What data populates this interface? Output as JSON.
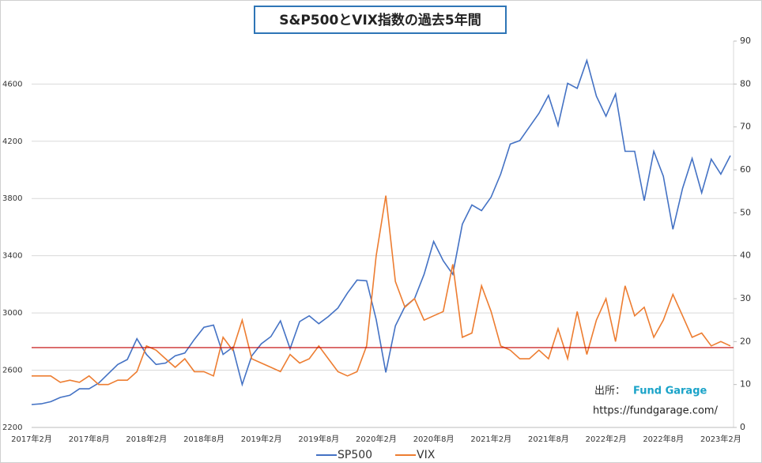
{
  "chart_data": {
    "type": "line",
    "title": "S&P500とVIX指数の過去5年間",
    "categories": [
      "2017年2月",
      null,
      null,
      null,
      null,
      null,
      "2017年8月",
      null,
      null,
      null,
      null,
      null,
      "2018年2月",
      null,
      null,
      null,
      null,
      null,
      "2018年8月",
      null,
      null,
      null,
      null,
      null,
      "2019年2月",
      null,
      null,
      null,
      null,
      null,
      "2019年8月",
      null,
      null,
      null,
      null,
      null,
      "2020年2月",
      null,
      null,
      null,
      null,
      null,
      "2020年8月",
      null,
      null,
      null,
      null,
      null,
      "2021年2月",
      null,
      null,
      null,
      null,
      null,
      "2021年8月",
      null,
      null,
      null,
      null,
      null,
      "2022年2月",
      null,
      null,
      null,
      null,
      null,
      "2022年8月",
      null,
      null,
      null,
      null,
      null,
      "2023年2月",
      null
    ],
    "series": [
      {
        "name": "SP500",
        "color": "#4472c4",
        "values": [
          2360,
          2365,
          2380,
          2410,
          2425,
          2470,
          2470,
          2510,
          2575,
          2640,
          2675,
          2820,
          2710,
          2640,
          2650,
          2700,
          2720,
          2815,
          2900,
          2915,
          2710,
          2760,
          2500,
          2700,
          2785,
          2835,
          2945,
          2750,
          2940,
          2980,
          2925,
          2975,
          3035,
          3140,
          3230,
          3225,
          2955,
          2585,
          2910,
          3045,
          3100,
          3270,
          3500,
          3365,
          3270,
          3620,
          3755,
          3715,
          3810,
          3970,
          4180,
          4205,
          4300,
          4395,
          4520,
          4310,
          4605,
          4570,
          4765,
          4515,
          4375,
          4530,
          4130,
          4130,
          3785,
          4130,
          3955,
          3585,
          3870,
          4080,
          3840,
          4075,
          3970,
          4100
        ]
      },
      {
        "name": "VIX",
        "color": "#ed7d31",
        "axis": "y2",
        "values": [
          12,
          12,
          12,
          10.5,
          11,
          10.5,
          12,
          10,
          10,
          11,
          11,
          13,
          19,
          18,
          16,
          14,
          16,
          13,
          13,
          12,
          21,
          18,
          25,
          16,
          15,
          14,
          13,
          17,
          15,
          16,
          19,
          16,
          13,
          12,
          13,
          19,
          40,
          54,
          34,
          28,
          30,
          25,
          26,
          27,
          38,
          21,
          22,
          33,
          27,
          19,
          18,
          16,
          16,
          18,
          16,
          23,
          16,
          27,
          17,
          25,
          30,
          20,
          33,
          26,
          28,
          21,
          25,
          31,
          26,
          21,
          22,
          19,
          20,
          19
        ]
      }
    ],
    "ylim": [
      2200,
      4900
    ],
    "yticks": [
      2200,
      2600,
      3000,
      3400,
      3800,
      4200,
      4600
    ],
    "y2lim": [
      0,
      90
    ],
    "y2ticks": [
      0,
      10,
      20,
      30,
      40,
      50,
      60,
      70,
      80,
      90
    ],
    "grid": true,
    "legend": "bottom",
    "reference_line": {
      "value": 18.6,
      "axis": "y2",
      "color": "#c00000"
    },
    "annotation": {
      "label": "出所：",
      "source": "Fund Garage",
      "url": "https://fundgarage.com/"
    }
  }
}
